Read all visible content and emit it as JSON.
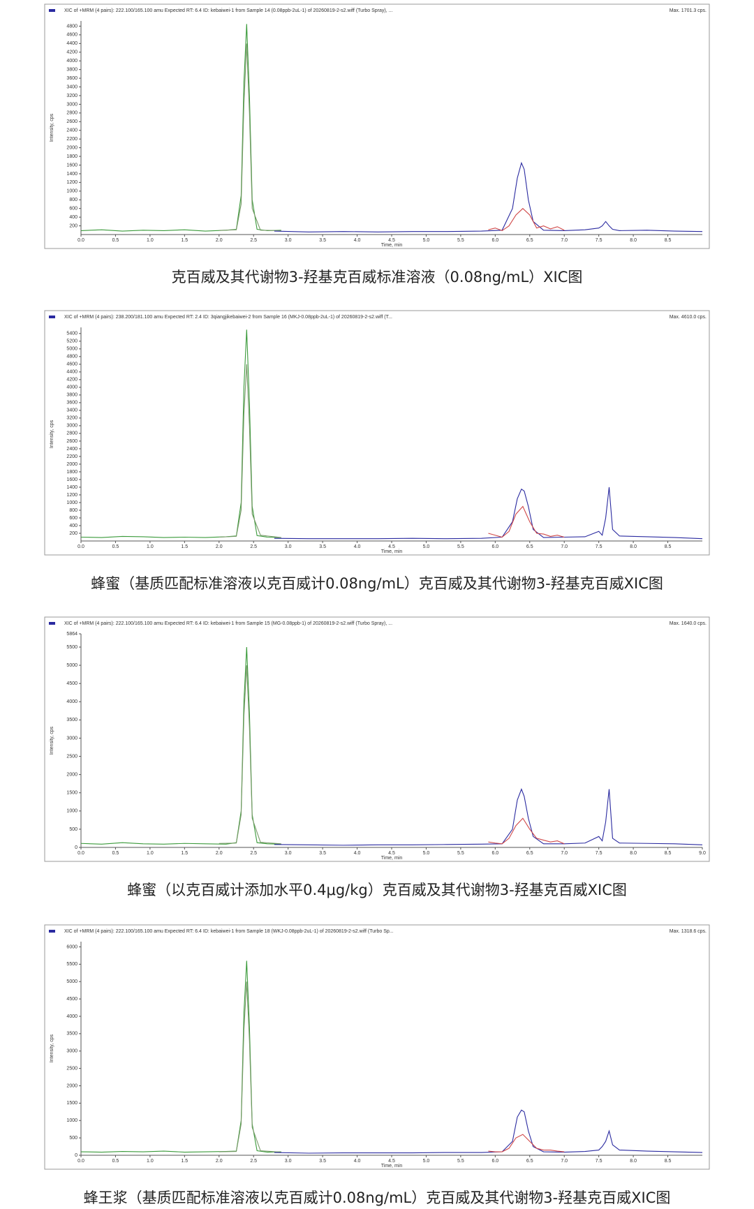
{
  "chart_data": [
    {
      "type": "line",
      "title": "XIC of +MRM (4 pairs): 222.100/165.100 amu Expected RT: 6.4 ID: kebaiwei-1 from Sample 14 (0.08ppb-2uL-1) of 20260819-2-s2.wiff (Turbo Spray), ...",
      "annotation": "Max. 1701.3 cps.",
      "ylabel": "Intensity, cps",
      "xlabel": "Time, min",
      "caption": "克百威及其代谢物3-羟基克百威标准溶液（0.08ng/mL）XIC图",
      "xlim": [
        0,
        9.0
      ],
      "ylim": [
        0,
        4920
      ],
      "xticks": [
        {
          "value": 0,
          "label": "0.0"
        },
        0.5,
        {
          "value": 1,
          "label": "1.0"
        },
        1.5,
        {
          "value": 2,
          "label": "2.0"
        },
        2.5,
        {
          "value": 3,
          "label": "3.0"
        },
        3.5,
        {
          "value": 4,
          "label": "4.0"
        },
        4.5,
        {
          "value": 5,
          "label": "5.0"
        },
        5.5,
        {
          "value": 6,
          "label": "6.0"
        },
        6.5,
        {
          "value": 7,
          "label": "7.0"
        },
        7.5,
        {
          "value": 8,
          "label": "8.0"
        },
        8.5
      ],
      "yticks": [
        200,
        400,
        600,
        800,
        1000,
        1200,
        1400,
        1600,
        1800,
        2000,
        2200,
        2400,
        2600,
        2800,
        3000,
        3200,
        3400,
        3600,
        3800,
        4000,
        4200,
        4400,
        4600,
        4800
      ],
      "series": [
        {
          "color": "#3a9a3a",
          "x": [
            0,
            0.3,
            0.6,
            0.9,
            1.2,
            1.5,
            1.8,
            2.1,
            2.25,
            2.32,
            2.36,
            2.4,
            2.44,
            2.48,
            2.55,
            2.7,
            2.9
          ],
          "values": [
            90,
            110,
            80,
            100,
            90,
            110,
            80,
            100,
            120,
            900,
            3500,
            4850,
            3200,
            800,
            120,
            90,
            100
          ]
        },
        {
          "color": "#7a9a6a",
          "x": [
            2.0,
            2.25,
            2.32,
            2.36,
            2.4,
            2.44,
            2.48,
            2.6,
            2.9
          ],
          "values": [
            95,
            110,
            700,
            3000,
            4400,
            2800,
            600,
            100,
            90
          ]
        },
        {
          "color": "#2a2aa0",
          "x": [
            2.8,
            3.3,
            3.8,
            4.3,
            4.8,
            5.3,
            5.8,
            6.1,
            6.25,
            6.32,
            6.38,
            6.42,
            6.48,
            6.55,
            6.7,
            7.0,
            7.3,
            7.5,
            7.55,
            7.6,
            7.65,
            7.7,
            7.8,
            8.2,
            8.6,
            9.0
          ],
          "values": [
            80,
            60,
            70,
            60,
            70,
            70,
            80,
            100,
            600,
            1300,
            1650,
            1500,
            800,
            300,
            100,
            90,
            110,
            150,
            200,
            300,
            200,
            120,
            90,
            100,
            80,
            70
          ]
        },
        {
          "color": "#d04848",
          "x": [
            5.9,
            6.0,
            6.1,
            6.2,
            6.3,
            6.4,
            6.5,
            6.6,
            6.7,
            6.8,
            6.9,
            7.0
          ],
          "values": [
            110,
            150,
            90,
            200,
            450,
            600,
            450,
            150,
            200,
            130,
            180,
            100
          ]
        }
      ]
    },
    {
      "type": "line",
      "title": "XIC of +MRM (4 pairs): 238.200/181.100 amu Expected RT: 2.4 ID: 3qiangjikebaiwei-2 from Sample 16 (MKJ-0.08ppb-2uL-1) of 20260819-2-s2.wiff (T...",
      "annotation": "Max. 4610.0 cps.",
      "ylabel": "Intensity, cps",
      "xlabel": "Time, min",
      "caption": "蜂蜜（基质匹配标准溶液以克百威计0.08ng/mL）克百威及其代谢物3-羟基克百威XIC图",
      "xlim": [
        0,
        9.0
      ],
      "ylim": [
        0,
        5560
      ],
      "xticks": [
        {
          "value": 0,
          "label": "0.0"
        },
        0.5,
        {
          "value": 1,
          "label": "1.0"
        },
        1.5,
        {
          "value": 2,
          "label": "2.0"
        },
        2.5,
        {
          "value": 3,
          "label": "3.0"
        },
        3.5,
        {
          "value": 4,
          "label": "4.0"
        },
        4.5,
        {
          "value": 5,
          "label": "5.0"
        },
        5.5,
        {
          "value": 6,
          "label": "6.0"
        },
        6.5,
        {
          "value": 7,
          "label": "7.0"
        },
        7.5,
        {
          "value": 8,
          "label": "8.0"
        },
        8.5
      ],
      "yticks": [
        200,
        400,
        600,
        800,
        1000,
        1200,
        1400,
        1600,
        1800,
        2000,
        2200,
        2400,
        2600,
        2800,
        3000,
        3200,
        3400,
        3600,
        3800,
        4000,
        4200,
        4400,
        4600,
        4800,
        5000,
        5200,
        5400
      ],
      "series": [
        {
          "color": "#3a9a3a",
          "x": [
            0,
            0.3,
            0.6,
            0.9,
            1.2,
            1.5,
            1.8,
            2.1,
            2.25,
            2.32,
            2.36,
            2.4,
            2.44,
            2.48,
            2.55,
            2.7,
            2.9
          ],
          "values": [
            100,
            90,
            120,
            110,
            90,
            100,
            90,
            110,
            130,
            1000,
            4000,
            5500,
            3600,
            900,
            140,
            100,
            90
          ]
        },
        {
          "color": "#7a9a6a",
          "x": [
            2.0,
            2.25,
            2.32,
            2.36,
            2.4,
            2.44,
            2.48,
            2.6,
            2.9
          ],
          "values": [
            100,
            120,
            800,
            3300,
            4600,
            3000,
            700,
            150,
            90
          ]
        },
        {
          "color": "#2a2aa0",
          "x": [
            2.8,
            3.3,
            3.8,
            4.3,
            4.8,
            5.3,
            5.8,
            6.1,
            6.25,
            6.32,
            6.38,
            6.42,
            6.48,
            6.55,
            6.7,
            7.0,
            7.3,
            7.5,
            7.55,
            7.6,
            7.65,
            7.7,
            7.8,
            8.2,
            8.6,
            9.0
          ],
          "values": [
            70,
            60,
            60,
            60,
            70,
            60,
            70,
            100,
            500,
            1100,
            1350,
            1300,
            900,
            300,
            90,
            100,
            110,
            250,
            150,
            600,
            1400,
            300,
            130,
            110,
            90,
            60
          ]
        },
        {
          "color": "#d04848",
          "x": [
            5.9,
            6.0,
            6.1,
            6.2,
            6.3,
            6.4,
            6.5,
            6.6,
            6.7,
            6.8,
            6.9,
            7.0
          ],
          "values": [
            200,
            150,
            100,
            250,
            700,
            900,
            500,
            200,
            180,
            120,
            150,
            100
          ]
        }
      ]
    },
    {
      "type": "line",
      "title": "XIC of +MRM (4 pairs): 222.100/165.100 amu Expected RT: 6.4 ID: kebaiwei-1 from Sample 15 (MG-0.08ppb-1) of 20260819-2-s2.wiff (Turbo Spray), ...",
      "annotation": "Max. 1640.0 cps.",
      "ylabel": "Intensity, cps",
      "xlabel": "Time, min",
      "caption": "蜂蜜（以克百威计添加水平0.4μg/kg）克百威及其代谢物3-羟基克百威XIC图",
      "xlim": [
        0,
        9.0
      ],
      "ylim": [
        0,
        5864
      ],
      "xticks": [
        {
          "value": 0,
          "label": "0.0"
        },
        0.5,
        {
          "value": 1,
          "label": "1.0"
        },
        1.5,
        {
          "value": 2,
          "label": "2.0"
        },
        2.5,
        {
          "value": 3,
          "label": "3.0"
        },
        3.5,
        {
          "value": 4,
          "label": "4.0"
        },
        4.5,
        {
          "value": 5,
          "label": "5.0"
        },
        5.5,
        {
          "value": 6,
          "label": "6.0"
        },
        6.5,
        {
          "value": 7,
          "label": "7.0"
        },
        7.5,
        {
          "value": 8,
          "label": "8.0"
        },
        8.5,
        {
          "value": 9,
          "label": "9.0"
        }
      ],
      "yticks": [
        0,
        500,
        1000,
        1500,
        2000,
        2500,
        3000,
        3500,
        4000,
        4500,
        5000,
        5500,
        5864
      ],
      "series": [
        {
          "color": "#3a9a3a",
          "x": [
            0,
            0.3,
            0.6,
            0.9,
            1.2,
            1.5,
            1.8,
            2.1,
            2.25,
            2.32,
            2.36,
            2.4,
            2.44,
            2.48,
            2.55,
            2.7,
            2.9
          ],
          "values": [
            110,
            90,
            130,
            100,
            90,
            110,
            100,
            90,
            130,
            1000,
            4000,
            5500,
            3700,
            900,
            130,
            100,
            90
          ]
        },
        {
          "color": "#7a9a6a",
          "x": [
            2.0,
            2.25,
            2.32,
            2.36,
            2.4,
            2.44,
            2.48,
            2.6,
            2.9
          ],
          "values": [
            110,
            120,
            900,
            3600,
            5000,
            3300,
            800,
            140,
            100
          ]
        },
        {
          "color": "#2a2aa0",
          "x": [
            2.8,
            3.3,
            3.8,
            4.3,
            4.8,
            5.3,
            5.8,
            6.1,
            6.25,
            6.32,
            6.38,
            6.42,
            6.48,
            6.55,
            6.7,
            7.0,
            7.3,
            7.5,
            7.55,
            7.6,
            7.65,
            7.7,
            7.8,
            8.2,
            8.6,
            9.0
          ],
          "values": [
            80,
            70,
            60,
            70,
            70,
            80,
            90,
            100,
            500,
            1300,
            1600,
            1400,
            800,
            300,
            100,
            100,
            120,
            300,
            180,
            700,
            1600,
            250,
            120,
            110,
            100,
            70
          ]
        },
        {
          "color": "#d04848",
          "x": [
            5.9,
            6.0,
            6.1,
            6.2,
            6.3,
            6.4,
            6.5,
            6.6,
            6.7,
            6.8,
            6.9,
            7.0
          ],
          "values": [
            150,
            120,
            100,
            250,
            600,
            800,
            500,
            250,
            200,
            150,
            180,
            100
          ]
        }
      ]
    },
    {
      "type": "line",
      "title": "XIC of +MRM (4 pairs): 222.100/165.100 amu Expected RT: 6.4 ID: kebaiwei-1 from Sample 18 (WKJ-0.08ppb-2uL-1) of 20260819-2-s2.wiff (Turbo Sp...",
      "annotation": "Max. 1318.6 cps.",
      "ylabel": "Intensity, cps",
      "xlabel": "Time, min",
      "caption": "蜂王浆（基质匹配标准溶液以克百威计0.08ng/mL）克百威及其代谢物3-羟基克百威XIC图",
      "xlim": [
        0,
        9.0
      ],
      "ylim": [
        0,
        6150
      ],
      "xticks": [
        {
          "value": 0,
          "label": "0.0"
        },
        0.5,
        {
          "value": 1,
          "label": "1.0"
        },
        1.5,
        {
          "value": 2,
          "label": "2.0"
        },
        2.5,
        {
          "value": 3,
          "label": "3.0"
        },
        3.5,
        {
          "value": 4,
          "label": "4.0"
        },
        4.5,
        {
          "value": 5,
          "label": "5.0"
        },
        5.5,
        {
          "value": 6,
          "label": "6.0"
        },
        6.5,
        {
          "value": 7,
          "label": "7.0"
        },
        7.5,
        {
          "value": 8,
          "label": "8.0"
        },
        8.5
      ],
      "yticks": [
        0,
        500,
        1000,
        1500,
        2000,
        2500,
        3000,
        3500,
        4000,
        4500,
        5000,
        5500,
        6000
      ],
      "series": [
        {
          "color": "#3a9a3a",
          "x": [
            0,
            0.3,
            0.6,
            0.9,
            1.2,
            1.5,
            1.8,
            2.1,
            2.25,
            2.32,
            2.36,
            2.4,
            2.44,
            2.48,
            2.55,
            2.7,
            2.9
          ],
          "values": [
            100,
            90,
            110,
            100,
            120,
            90,
            100,
            110,
            120,
            1000,
            4100,
            5600,
            3700,
            900,
            130,
            90,
            100
          ]
        },
        {
          "color": "#7a9a6a",
          "x": [
            2.0,
            2.25,
            2.32,
            2.36,
            2.4,
            2.44,
            2.48,
            2.6,
            2.9
          ],
          "values": [
            100,
            110,
            900,
            3600,
            5000,
            3300,
            800,
            130,
            90
          ]
        },
        {
          "color": "#2a2aa0",
          "x": [
            2.8,
            3.3,
            3.8,
            4.3,
            4.8,
            5.3,
            5.8,
            6.1,
            6.25,
            6.32,
            6.38,
            6.42,
            6.48,
            6.55,
            6.7,
            7.0,
            7.3,
            7.5,
            7.55,
            7.6,
            7.65,
            7.7,
            7.8,
            8.2,
            8.6,
            9.0
          ],
          "values": [
            80,
            60,
            70,
            70,
            70,
            80,
            80,
            100,
            400,
            1100,
            1300,
            1250,
            700,
            250,
            100,
            90,
            110,
            150,
            250,
            400,
            700,
            300,
            150,
            120,
            100,
            80
          ]
        },
        {
          "color": "#d04848",
          "x": [
            5.9,
            6.0,
            6.1,
            6.2,
            6.3,
            6.4,
            6.5,
            6.6,
            6.7,
            6.8,
            6.9,
            7.0
          ],
          "values": [
            120,
            100,
            100,
            200,
            500,
            600,
            400,
            200,
            150,
            150,
            120,
            100
          ]
        }
      ]
    }
  ]
}
